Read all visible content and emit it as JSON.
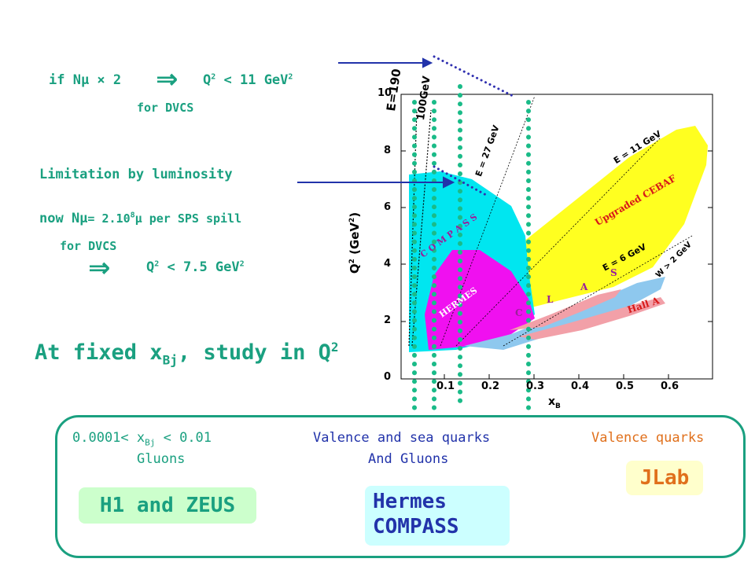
{
  "left_notes": {
    "n1_prefix": "if Nμ ",
    "n1_times": "×",
    "n1_two": " 2",
    "n1_arrow": "⇒",
    "n1_q": "Q",
    "n1_q_sup": "2",
    "n1_rest": " < 11 GeV",
    "n1_rest_sup": "2",
    "n1_sub": "for DVCS",
    "limitation": "Limitation by luminosity",
    "now_prefix": "now Nμ",
    "now_eq": "= 2.10",
    "now_sup": "8",
    "now_mu": "μ per SPS spill",
    "now_sub": "for DVCS",
    "n2_arrow": "⇒",
    "n2_q": "Q",
    "n2_q_sup": "2",
    "n2_rest": " < 7.5 GeV",
    "n2_rest_sup": "2"
  },
  "headline": {
    "prefix": "At fixed x",
    "sub": "Bj",
    "mid": ", study in Q",
    "sup": "2"
  },
  "plot": {
    "y_axis_label": "Q",
    "y_axis_sup": "2",
    "y_axis_unit": " (GeV",
    "y_axis_unit_sup": "2",
    "y_axis_close": ")",
    "x_axis_label": "x",
    "x_axis_sub": "B",
    "y_ticks": [
      "0",
      "2",
      "4",
      "6",
      "8",
      "10"
    ],
    "x_ticks": [
      "0.1",
      "0.2",
      "0.3",
      "0.4",
      "0.5",
      "0.6"
    ],
    "label_e190": "E=190",
    "label_e100": "100GeV",
    "label_e27": "E = 27 GeV",
    "label_e11": "E = 11 GeV",
    "label_e6": "E = 6 GeV",
    "label_w2": "W > 2 GeV",
    "label_cebaf": "Upgraded CEBAF",
    "label_compass": "C O M P A S S",
    "label_hermes": "HERMES",
    "label_clas_c": "C",
    "label_clas_l": "L",
    "label_clas_a": "A",
    "label_clas_s": "S",
    "label_halla": "Hall A",
    "colors": {
      "compass": "#00e6f0",
      "hermes": "#f010f0",
      "cebaf": "#ffff20",
      "clas": "#8ec8ee",
      "halla": "#f2a0a8",
      "text_red": "#d81818",
      "text_purple": "#9a209a",
      "dots_teal": "#1abb88",
      "dots_blue": "#3030b0"
    }
  },
  "bottom": {
    "col1_pre": "0.0001< x",
    "col1_sub": "Bj",
    "col1_post": " < 0.01",
    "col1_line2": "Gluons",
    "col2_line1": "Valence and sea quarks",
    "col2_line2": "And Gluons",
    "col3_line1": "Valence quarks",
    "tag_h1": "H1 and ZEUS",
    "tag_hermes_line1": "Hermes",
    "tag_hermes_line2": "COMPASS",
    "tag_jlab": "JLab"
  }
}
